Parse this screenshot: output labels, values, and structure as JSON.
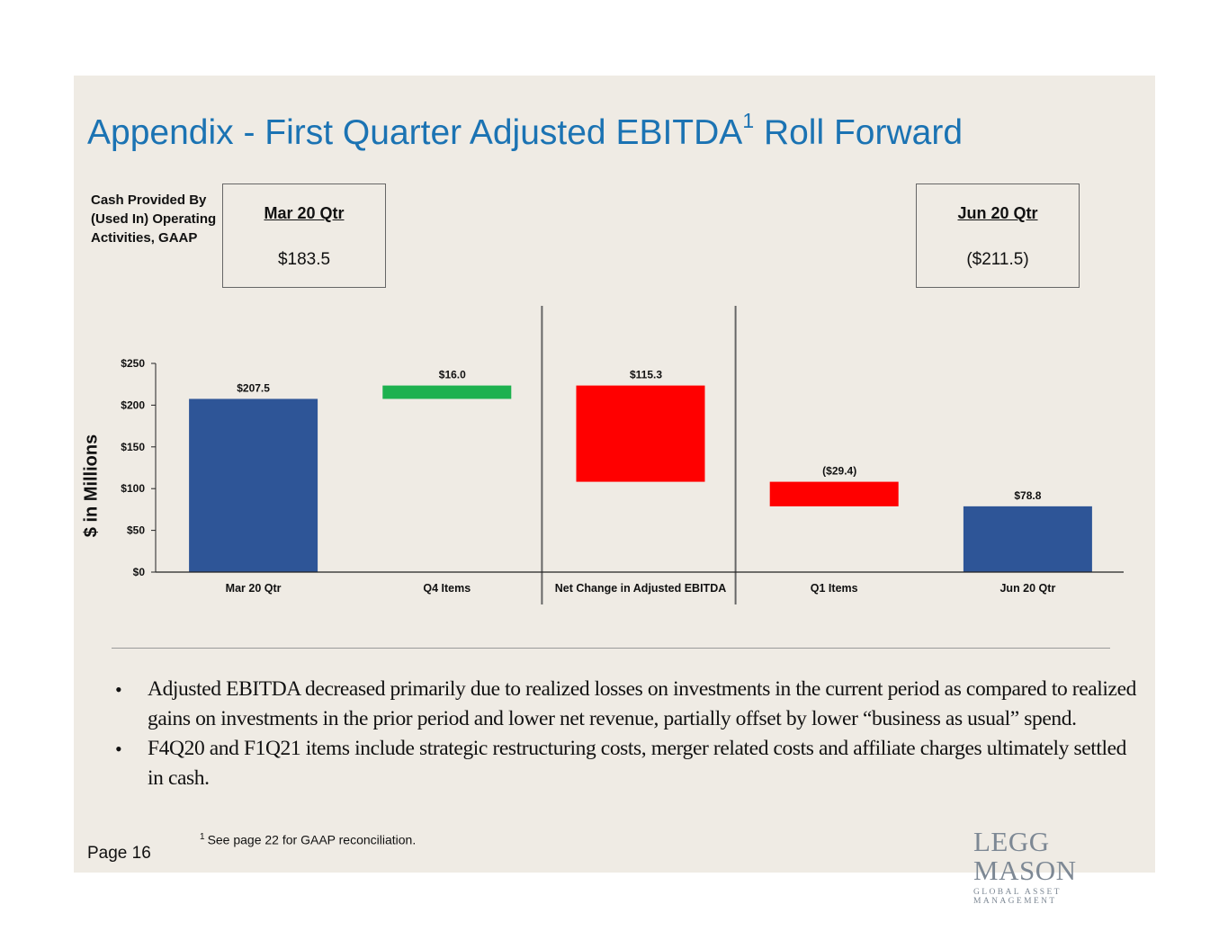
{
  "title": {
    "main": "Appendix - First Quarter Adjusted EBITDA",
    "superscript": "1",
    "tail": "Roll Forward"
  },
  "cash_flow": {
    "label": "Cash Provided By (Used In) Operating Activities, GAAP",
    "left": {
      "heading": "Mar 20 Qtr",
      "value": "$183.5"
    },
    "right": {
      "heading": "Jun 20 Qtr",
      "value": "($211.5)"
    }
  },
  "chart_data": {
    "type": "bar",
    "subtype": "waterfall",
    "ylabel": "$ in Millions",
    "ylim": [
      0,
      250
    ],
    "yticks": [
      "$0",
      "$50",
      "$100",
      "$150",
      "$200",
      "$250"
    ],
    "ytick_values": [
      0,
      50,
      100,
      150,
      200,
      250
    ],
    "categories": [
      "Mar 20 Qtr",
      "Q4 Items",
      "Net Change in Adjusted EBITDA",
      "Q1 Items",
      "Jun 20 Qtr"
    ],
    "bars": [
      {
        "label": "$207.5",
        "start": 0,
        "end": 207.5,
        "kind": "total",
        "color": "#2e5597"
      },
      {
        "label": "$16.0",
        "start": 207.5,
        "end": 223.5,
        "kind": "increase",
        "color": "#1db14f"
      },
      {
        "label": "$115.3",
        "start": 223.5,
        "end": 108.2,
        "kind": "decrease",
        "color": "#ff0000"
      },
      {
        "label": "($29.4)",
        "start": 108.2,
        "end": 78.8,
        "kind": "decrease",
        "color": "#ff0000"
      },
      {
        "label": "$78.8",
        "start": 0,
        "end": 78.8,
        "kind": "total",
        "color": "#2e5597"
      }
    ],
    "grid": false,
    "section_dividers_after_categories": [
      1,
      2
    ]
  },
  "bullets": [
    "Adjusted EBITDA decreased primarily due to realized losses on investments in the current period as compared to realized gains on investments in the prior period and lower net revenue, partially offset by lower “business as usual” spend.",
    "F4Q20 and F1Q21 items include strategic restructuring costs, merger related costs and affiliate charges ultimately settled in cash."
  ],
  "bullet_symbol": "•",
  "footnote": {
    "marker": "1",
    "text": "See page 22 for GAAP reconciliation."
  },
  "page": "Page 16",
  "logo": {
    "name": "LEGG MASON",
    "tagline": "GLOBAL ASSET MANAGEMENT"
  }
}
